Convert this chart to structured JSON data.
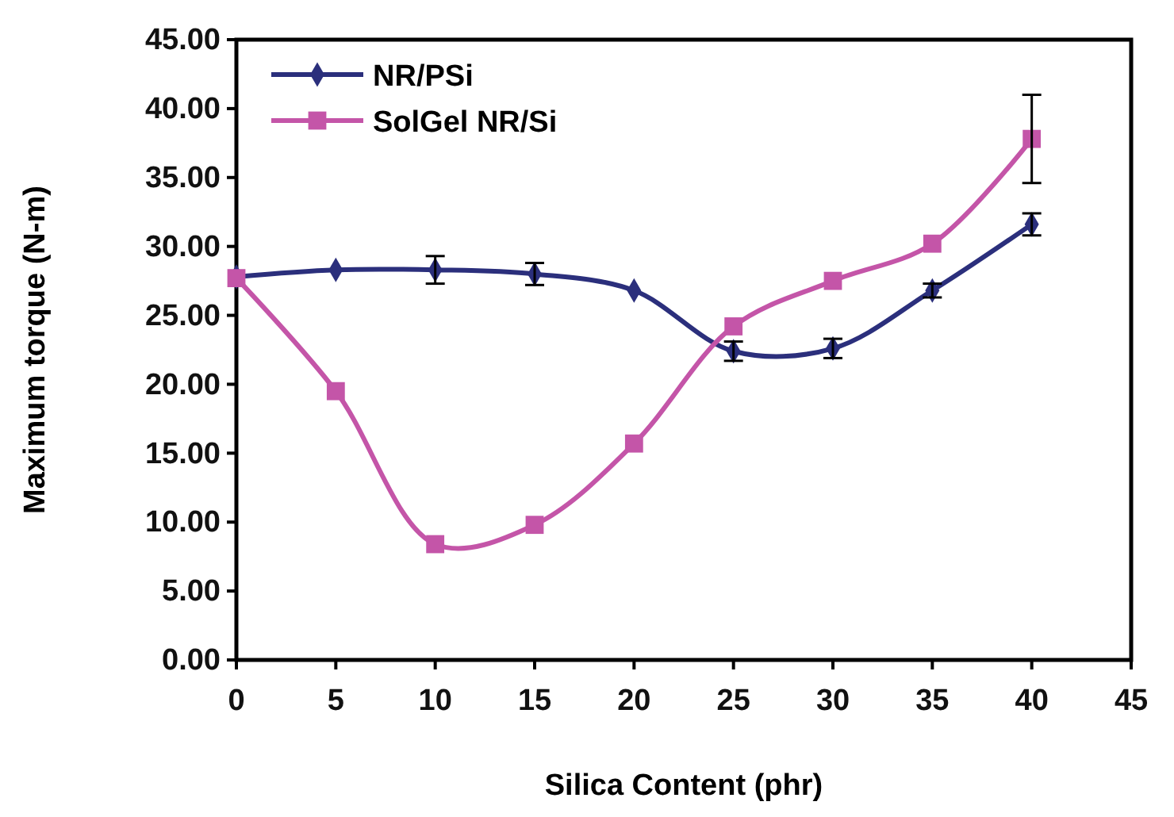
{
  "chart_data": {
    "type": "line",
    "xlabel": "Silica Content (phr)",
    "ylabel": "Maximum  torque (N-m)",
    "x": [
      0,
      5,
      10,
      15,
      20,
      25,
      30,
      35,
      40
    ],
    "series": [
      {
        "name": "NR/PSi",
        "color": "#2b2f7c",
        "marker": "diamond",
        "values": [
          27.8,
          28.3,
          28.3,
          28.0,
          26.8,
          22.4,
          22.6,
          26.8,
          31.6
        ],
        "errors": [
          null,
          null,
          1.0,
          0.8,
          null,
          0.7,
          0.7,
          0.5,
          0.8
        ]
      },
      {
        "name": "SolGel NR/Si",
        "color": "#c455a8",
        "marker": "square",
        "values": [
          27.7,
          19.5,
          8.4,
          9.8,
          15.7,
          24.2,
          27.5,
          30.2,
          37.8
        ],
        "errors": [
          null,
          null,
          null,
          null,
          null,
          null,
          null,
          null,
          3.2
        ]
      }
    ],
    "xlim": [
      0,
      45
    ],
    "xticks": [
      0,
      5,
      10,
      15,
      20,
      25,
      30,
      35,
      40,
      45
    ],
    "ylim": [
      0,
      45
    ],
    "yticks": [
      {
        "value": 0,
        "label": "0.00"
      },
      {
        "value": 5,
        "label": "5.00"
      },
      {
        "value": 10,
        "label": "10.00"
      },
      {
        "value": 15,
        "label": "15.00"
      },
      {
        "value": 20,
        "label": "20.00"
      },
      {
        "value": 25,
        "label": "25.00"
      },
      {
        "value": 30,
        "label": "30.00"
      },
      {
        "value": 35,
        "label": "35.00"
      },
      {
        "value": 40,
        "label": "40.00"
      },
      {
        "value": 45,
        "label": "45.00"
      }
    ],
    "grid": false,
    "legend": "top left"
  }
}
